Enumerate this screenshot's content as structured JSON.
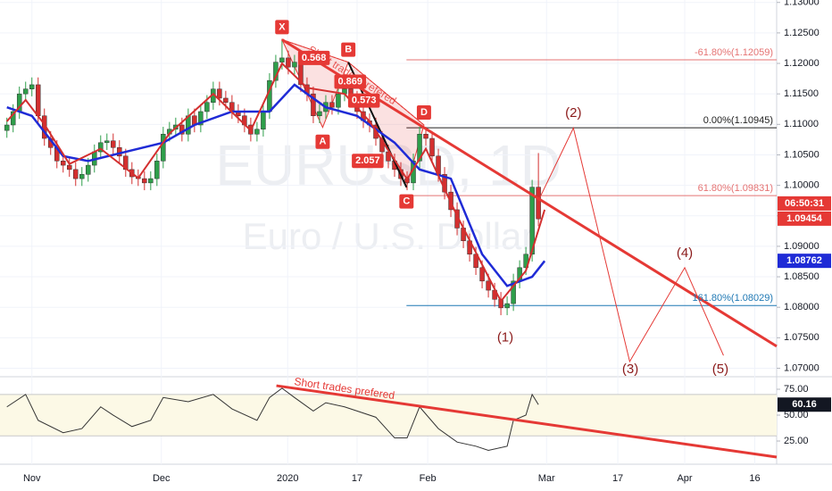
{
  "chart_data": {
    "type": "candlestick",
    "watermark_symbol": "EURUSD, 1D",
    "watermark_name": "Euro / U.S. Dollar",
    "up_color": "#2e9e4a",
    "down_color": "#d32f2f",
    "xlim": [
      -1.1,
      123.1
    ],
    "ylim": [
      1.0689,
      1.1304
    ],
    "grid": true,
    "xticks": [
      {
        "value": 4,
        "label": "Nov"
      },
      {
        "value": 24.7,
        "label": "Dec"
      },
      {
        "value": 44.9,
        "label": "2020"
      },
      {
        "value": 56,
        "label": "17"
      },
      {
        "value": 67.3,
        "label": "Feb"
      },
      {
        "value": 86.3,
        "label": "Mar"
      },
      {
        "value": 97.7,
        "label": "17"
      },
      {
        "value": 108.4,
        "label": "Apr"
      },
      {
        "value": 119.6,
        "label": "16"
      }
    ],
    "yticks": [
      {
        "value": 1.07,
        "label": "1.07000"
      },
      {
        "value": 1.075,
        "label": "1.07500"
      },
      {
        "value": 1.08,
        "label": "1.08000"
      },
      {
        "value": 1.085,
        "label": "1.08500"
      },
      {
        "value": 1.09,
        "label": "1.09000"
      },
      {
        "value": 1.095,
        "label": "1.09500"
      },
      {
        "value": 1.1,
        "label": "1.10000"
      },
      {
        "value": 1.105,
        "label": "1.10500"
      },
      {
        "value": 1.11,
        "label": "1.11000"
      },
      {
        "value": 1.115,
        "label": "1.11500"
      },
      {
        "value": 1.12,
        "label": "1.12000"
      },
      {
        "value": 1.125,
        "label": "1.12500"
      },
      {
        "value": 1.13,
        "label": "1.13000"
      }
    ],
    "x": [
      0,
      1,
      2,
      3,
      4,
      5,
      6,
      7,
      8,
      9,
      10,
      11,
      12,
      13,
      14,
      15,
      16,
      17,
      18,
      19,
      20,
      21,
      22,
      23,
      24,
      25,
      26,
      27,
      28,
      29,
      30,
      31,
      32,
      33,
      34,
      35,
      36,
      37,
      38,
      39,
      40,
      41,
      42,
      43,
      44,
      45,
      46,
      47,
      48,
      49,
      50,
      51,
      52,
      53,
      54,
      55,
      56,
      57,
      58,
      59,
      60,
      61,
      62,
      63,
      64,
      65,
      66,
      67,
      68,
      69,
      70,
      71,
      72,
      73,
      74,
      75,
      76,
      77,
      78,
      79,
      80,
      81,
      82,
      83,
      84,
      85
    ],
    "open": [
      1.109,
      1.1099,
      1.1121,
      1.115,
      1.1158,
      1.1165,
      1.1114,
      1.1077,
      1.1062,
      1.104,
      1.1033,
      1.1026,
      1.1011,
      1.1018,
      1.1033,
      1.1055,
      1.107,
      1.1073,
      1.1062,
      1.1048,
      1.1026,
      1.1014,
      1.1011,
      1.1004,
      1.1011,
      1.104,
      1.1084,
      1.1092,
      1.1099,
      1.1084,
      1.1114,
      1.1099,
      1.1121,
      1.1136,
      1.1158,
      1.1143,
      1.1136,
      1.1121,
      1.1114,
      1.1099,
      1.1084,
      1.1092,
      1.1121,
      1.1172,
      1.1202,
      1.1209,
      1.1194,
      1.1202,
      1.1165,
      1.115,
      1.1114,
      1.1121,
      1.1136,
      1.1128,
      1.115,
      1.1158,
      1.1143,
      1.1121,
      1.1106,
      1.1099,
      1.1077,
      1.1055,
      1.104,
      1.1026,
      1.1011,
      1.1004,
      1.104,
      1.1084,
      1.1077,
      1.1048,
      1.1018,
      1.0989,
      1.096,
      1.093,
      1.0909,
      1.0887,
      1.0865,
      1.0843,
      1.0828,
      1.0813,
      1.0799,
      1.0806,
      1.0843,
      1.0865,
      1.0887,
      1.0997
    ],
    "high": [
      1.1111,
      1.1133,
      1.1162,
      1.117,
      1.1177,
      1.1177,
      1.1126,
      1.1089,
      1.1074,
      1.1052,
      1.1045,
      1.1038,
      1.103,
      1.1045,
      1.1067,
      1.1082,
      1.1085,
      1.1085,
      1.1074,
      1.106,
      1.1038,
      1.1026,
      1.1023,
      1.1023,
      1.1052,
      1.1096,
      1.1104,
      1.1111,
      1.1111,
      1.1126,
      1.1126,
      1.1133,
      1.1148,
      1.117,
      1.117,
      1.1155,
      1.1148,
      1.1133,
      1.1126,
      1.1111,
      1.1104,
      1.1133,
      1.1184,
      1.1214,
      1.1239,
      1.1221,
      1.1214,
      1.1214,
      1.1177,
      1.1162,
      1.1133,
      1.1148,
      1.1148,
      1.1162,
      1.117,
      1.117,
      1.1155,
      1.1133,
      1.1118,
      1.1111,
      1.1089,
      1.1067,
      1.1052,
      1.1038,
      1.1023,
      1.1052,
      1.1096,
      1.1096,
      1.1089,
      1.106,
      1.103,
      1.1001,
      1.0972,
      1.0942,
      1.0921,
      1.0899,
      1.0877,
      1.0855,
      1.084,
      1.0825,
      1.0818,
      1.0855,
      1.0877,
      1.0899,
      1.1009,
      1.1053
    ],
    "low": [
      1.1078,
      1.1087,
      1.1109,
      1.1138,
      1.1146,
      1.1102,
      1.1065,
      1.105,
      1.1028,
      1.1021,
      1.1014,
      1.0999,
      1.0999,
      1.1006,
      1.1021,
      1.1043,
      1.1058,
      1.105,
      1.1036,
      1.1014,
      1.1002,
      1.0999,
      1.0992,
      1.0992,
      1.0999,
      1.1028,
      1.1072,
      1.108,
      1.1072,
      1.1072,
      1.1087,
      1.1087,
      1.1109,
      1.1124,
      1.1131,
      1.1124,
      1.1109,
      1.1102,
      1.1087,
      1.1072,
      1.1072,
      1.108,
      1.1109,
      1.116,
      1.119,
      1.1182,
      1.1182,
      1.1153,
      1.1138,
      1.1102,
      1.1102,
      1.1109,
      1.1116,
      1.1116,
      1.1138,
      1.1131,
      1.1109,
      1.1094,
      1.1087,
      1.1065,
      1.1043,
      1.1028,
      1.1014,
      1.0999,
      1.0992,
      1.0992,
      1.1028,
      1.1065,
      1.1036,
      1.1006,
      1.0977,
      1.0948,
      1.0918,
      1.0897,
      1.0875,
      1.0853,
      1.0831,
      1.0816,
      1.0801,
      1.0787,
      1.0787,
      1.0794,
      1.0831,
      1.0853,
      1.0875,
      1.0933
    ],
    "close": [
      1.1099,
      1.1121,
      1.115,
      1.1158,
      1.1165,
      1.1114,
      1.1077,
      1.1062,
      1.104,
      1.1033,
      1.1026,
      1.1011,
      1.1018,
      1.1033,
      1.1055,
      1.107,
      1.1073,
      1.1062,
      1.1048,
      1.1026,
      1.1014,
      1.1011,
      1.1004,
      1.1011,
      1.104,
      1.1084,
      1.1092,
      1.1099,
      1.1084,
      1.1114,
      1.1099,
      1.1121,
      1.1136,
      1.1158,
      1.1143,
      1.1136,
      1.1121,
      1.1114,
      1.1099,
      1.1084,
      1.1092,
      1.1121,
      1.1172,
      1.1202,
      1.1209,
      1.1194,
      1.1202,
      1.1165,
      1.115,
      1.1114,
      1.1121,
      1.1136,
      1.1128,
      1.115,
      1.1158,
      1.1143,
      1.1121,
      1.1106,
      1.1099,
      1.1077,
      1.1055,
      1.104,
      1.1026,
      1.1011,
      1.1004,
      1.104,
      1.1084,
      1.1077,
      1.1048,
      1.1018,
      1.0989,
      1.096,
      1.093,
      1.0909,
      1.0887,
      1.0865,
      1.0843,
      1.0828,
      1.0813,
      1.0799,
      1.0806,
      1.0843,
      1.0865,
      1.0887,
      1.0997,
      1.0945
    ],
    "moving_averages": [
      {
        "color": "#1f2bd6",
        "width": 2.5,
        "x": [
          0,
          4,
          9,
          13,
          19,
          25,
          30,
          36,
          42,
          46,
          51,
          56,
          62,
          66,
          71,
          76,
          80,
          84,
          86
        ],
        "values": [
          1.1128,
          1.1114,
          1.1048,
          1.104,
          1.1055,
          1.107,
          1.1099,
          1.1121,
          1.1121,
          1.1165,
          1.1128,
          1.1114,
          1.107,
          1.1026,
          1.1011,
          1.0887,
          1.0835,
          1.085,
          1.0876
        ]
      },
      {
        "color": "#d32f2f",
        "width": 2,
        "x": [
          0,
          3,
          6,
          10,
          15,
          21,
          26,
          33,
          39,
          44,
          48,
          54,
          58,
          64,
          67,
          72,
          79,
          83,
          86
        ],
        "values": [
          1.1105,
          1.114,
          1.11,
          1.1035,
          1.106,
          1.1012,
          1.1085,
          1.115,
          1.109,
          1.12,
          1.116,
          1.115,
          1.1105,
          1.101,
          1.106,
          1.095,
          1.081,
          1.086,
          1.096
        ]
      }
    ],
    "harmonic": {
      "color": "#e53935",
      "points": [
        {
          "label": "X",
          "x": 44,
          "value": 1.1239,
          "position": "above"
        },
        {
          "label": "A",
          "x": 50.5,
          "value": 1.1095,
          "position": "below"
        },
        {
          "label": "B",
          "x": 54.6,
          "value": 1.1202,
          "position": "above"
        },
        {
          "label": "C",
          "x": 63.9,
          "value": 1.0997,
          "position": "below"
        },
        {
          "label": "D",
          "x": 66.7,
          "value": 1.1099,
          "position": "above"
        }
      ],
      "ratios": [
        {
          "label": "0.568",
          "x": 49.1,
          "value": 1.1209
        },
        {
          "label": "0.869",
          "x": 54.9,
          "value": 1.117
        },
        {
          "label": "0.573",
          "x": 57.1,
          "value": 1.1139
        },
        {
          "label": "2.057",
          "x": 57.7,
          "value": 1.104
        }
      ]
    },
    "trendline": {
      "color": "#e53935",
      "label": "Short trades prefered",
      "x": [
        44,
        123.1
      ],
      "values": [
        1.1239,
        1.0736
      ]
    },
    "fib_levels": [
      {
        "label": "-61.80%(1.12059)",
        "value": 1.12059,
        "color": "#e57373",
        "x_start": 63.9
      },
      {
        "label": "0.00%(1.10945)",
        "value": 1.10945,
        "color": "#222222",
        "x_start": 63.9
      },
      {
        "label": "61.80%(1.09831)",
        "value": 1.09831,
        "color": "#e57373",
        "x_start": 63.9
      },
      {
        "label": "161.80%(1.08029)",
        "value": 1.08029,
        "color": "#1f78b4",
        "x_start": 63.9
      }
    ],
    "waves": {
      "color": "#e53935",
      "x": [
        85,
        90.6,
        99.6,
        108.4,
        114.6
      ],
      "values": [
        1.0975,
        1.1094,
        1.0711,
        1.0865,
        1.0721
      ],
      "labels": [
        {
          "label": "(1)",
          "x": 79.7,
          "value": 1.075
        },
        {
          "label": "(2)",
          "x": 90.6,
          "value": 1.1118
        },
        {
          "label": "(3)",
          "x": 99.7,
          "value": 1.0691
        },
        {
          "label": "(4)",
          "x": 108.4,
          "value": 1.0888
        },
        {
          "label": "(5)",
          "x": 114.1,
          "value": 1.0695
        }
      ]
    },
    "countdown": "06:50:31",
    "price_labels": [
      {
        "label": "1.09454",
        "value": 1.09454,
        "color": "#e53935"
      },
      {
        "label": "1.08762",
        "value": 1.08762,
        "color": "#1f2bd6"
      }
    ],
    "indicator": {
      "type": "line",
      "color": "#333333",
      "ylim": [
        2.6,
        84.5
      ],
      "yticks": [
        {
          "value": 25,
          "label": "25.00"
        },
        {
          "value": 50,
          "label": "50.00"
        },
        {
          "value": 75,
          "label": "75.00"
        }
      ],
      "band": [
        30,
        70
      ],
      "band_color": "#fcf9e6",
      "x": [
        0,
        3,
        5,
        9,
        12,
        15,
        17,
        20,
        23,
        25,
        29,
        33,
        36,
        40,
        42,
        44,
        46,
        49,
        51,
        54,
        56,
        59,
        62,
        64,
        66,
        69,
        72,
        75,
        77,
        80,
        81,
        83,
        84,
        85
      ],
      "values": [
        58,
        70,
        45,
        33,
        37,
        58,
        50,
        39,
        45,
        67,
        63,
        70,
        56,
        45,
        67,
        76,
        67,
        54,
        62,
        58,
        54,
        48,
        28,
        28,
        58,
        37,
        24,
        20,
        16,
        20,
        45,
        50,
        70,
        60.16
      ],
      "last_label": {
        "label": "60.16",
        "value": 60.16
      },
      "trendline": {
        "color": "#e53935",
        "label": "Short trades prefered",
        "x": [
          43.1,
          123.1
        ],
        "values": [
          78.4,
          9.5
        ]
      }
    }
  }
}
